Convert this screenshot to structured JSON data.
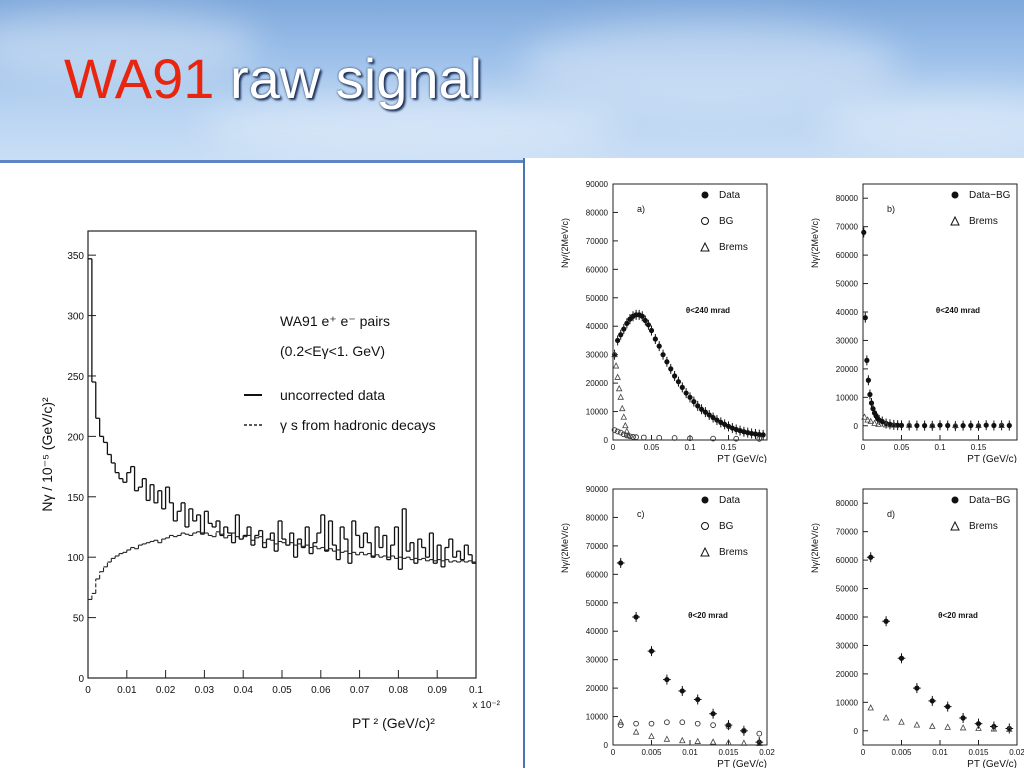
{
  "slide": {
    "title_red": "WA91",
    "title_white": " raw signal",
    "colors": {
      "title_red": "#e8250e",
      "title_white": "#ffffff",
      "header_sky": "#9cc0ea",
      "divider": "#5f86c4"
    }
  },
  "chart_data": [
    {
      "type": "line",
      "title": "",
      "legend_title": "WA91 e⁺ e⁻ pairs",
      "legend_subtitle": "(0.2<Eγ<1. GeV)",
      "ylabel": "Nγ / 10⁻⁵ (GeV/c)²",
      "xlabel": "PT ² (GeV/c)²",
      "x_scale_label": "x 10⁻²",
      "xlim": [
        0,
        0.1
      ],
      "ylim": [
        0,
        370
      ],
      "xticks": [
        0,
        0.01,
        0.02,
        0.03,
        0.04,
        0.05,
        0.06,
        0.07,
        0.08,
        0.09,
        0.1
      ],
      "xtick_labels": [
        "0",
        "0.01",
        "0.02",
        "0.03",
        "0.04",
        "0.05",
        "0.06",
        "0.07",
        "0.08",
        "0.09",
        "0.1"
      ],
      "yticks": [
        0,
        50,
        100,
        150,
        200,
        250,
        300,
        350
      ],
      "ytick_labels": [
        "0",
        "50",
        "100",
        "150",
        "200",
        "250",
        "300",
        "350"
      ],
      "series": [
        {
          "name": "uncorrected data",
          "style": "solid-histogram",
          "x": [
            0,
            0.001,
            0.002,
            0.003,
            0.004,
            0.005,
            0.006,
            0.007,
            0.008,
            0.009,
            0.01,
            0.011,
            0.012,
            0.013,
            0.014,
            0.015,
            0.016,
            0.017,
            0.018,
            0.019,
            0.02,
            0.021,
            0.022,
            0.023,
            0.024,
            0.025,
            0.026,
            0.027,
            0.028,
            0.029,
            0.03,
            0.031,
            0.032,
            0.033,
            0.034,
            0.035,
            0.036,
            0.037,
            0.038,
            0.039,
            0.04,
            0.041,
            0.042,
            0.043,
            0.044,
            0.045,
            0.046,
            0.047,
            0.048,
            0.049,
            0.05,
            0.051,
            0.052,
            0.053,
            0.054,
            0.055,
            0.056,
            0.057,
            0.058,
            0.059,
            0.06,
            0.061,
            0.062,
            0.063,
            0.064,
            0.065,
            0.066,
            0.067,
            0.068,
            0.069,
            0.07,
            0.071,
            0.072,
            0.073,
            0.074,
            0.075,
            0.076,
            0.077,
            0.078,
            0.079,
            0.08,
            0.081,
            0.082,
            0.083,
            0.084,
            0.085,
            0.086,
            0.087,
            0.088,
            0.089,
            0.09,
            0.091,
            0.092,
            0.093,
            0.094,
            0.095,
            0.096,
            0.097,
            0.098,
            0.099
          ],
          "values": [
            347,
            245,
            215,
            200,
            195,
            185,
            178,
            170,
            165,
            162,
            170,
            175,
            155,
            158,
            165,
            147,
            160,
            145,
            155,
            140,
            158,
            145,
            130,
            138,
            145,
            125,
            140,
            130,
            135,
            120,
            138,
            128,
            125,
            130,
            118,
            125,
            120,
            112,
            135,
            115,
            118,
            125,
            110,
            118,
            122,
            108,
            115,
            120,
            105,
            130,
            115,
            110,
            120,
            100,
            115,
            108,
            125,
            103,
            112,
            120,
            135,
            105,
            130,
            110,
            98,
            125,
            115,
            95,
            130,
            118,
            108,
            120,
            112,
            100,
            125,
            108,
            118,
            98,
            110,
            125,
            90,
            140,
            105,
            112,
            95,
            115,
            108,
            100,
            120,
            95,
            110,
            92,
            108,
            115,
            100,
            105,
            98,
            110,
            102,
            95
          ]
        },
        {
          "name": "γ s from hadronic decays",
          "style": "dashed-histogram",
          "x": [
            0,
            0.001,
            0.002,
            0.003,
            0.004,
            0.005,
            0.006,
            0.007,
            0.008,
            0.009,
            0.01,
            0.011,
            0.012,
            0.013,
            0.014,
            0.015,
            0.016,
            0.017,
            0.018,
            0.019,
            0.02,
            0.021,
            0.022,
            0.023,
            0.024,
            0.025,
            0.026,
            0.027,
            0.028,
            0.029,
            0.03,
            0.031,
            0.032,
            0.033,
            0.034,
            0.035,
            0.036,
            0.037,
            0.038,
            0.039,
            0.04,
            0.041,
            0.042,
            0.043,
            0.044,
            0.045,
            0.046,
            0.047,
            0.048,
            0.049,
            0.05,
            0.051,
            0.052,
            0.053,
            0.054,
            0.055,
            0.056,
            0.057,
            0.058,
            0.059,
            0.06,
            0.061,
            0.062,
            0.063,
            0.064,
            0.065,
            0.066,
            0.067,
            0.068,
            0.069,
            0.07,
            0.071,
            0.072,
            0.073,
            0.074,
            0.075,
            0.076,
            0.077,
            0.078,
            0.079,
            0.08,
            0.081,
            0.082,
            0.083,
            0.084,
            0.085,
            0.086,
            0.087,
            0.088,
            0.089,
            0.09,
            0.091,
            0.092,
            0.093,
            0.094,
            0.095,
            0.096,
            0.097,
            0.098,
            0.099
          ],
          "values": [
            65,
            70,
            82,
            88,
            92,
            96,
            99,
            101,
            103,
            104,
            106,
            108,
            107,
            110,
            111,
            112,
            113,
            114,
            112,
            115,
            116,
            118,
            117,
            118,
            120,
            119,
            118,
            120,
            121,
            119,
            120,
            118,
            117,
            121,
            119,
            116,
            118,
            120,
            117,
            115,
            117,
            118,
            114,
            116,
            117,
            112,
            115,
            114,
            111,
            113,
            112,
            110,
            112,
            110,
            111,
            109,
            110,
            108,
            109,
            107,
            108,
            106,
            107,
            105,
            106,
            104,
            105,
            103,
            104,
            102,
            104,
            102,
            103,
            101,
            102,
            100,
            101,
            100,
            101,
            99,
            100,
            99,
            100,
            98,
            99,
            98,
            99,
            97,
            98,
            97,
            98,
            97,
            98,
            96,
            97,
            96,
            97,
            96,
            97,
            96
          ]
        }
      ]
    },
    {
      "type": "scatter",
      "panel_label": "a)",
      "cut_label": "θ<240 mrad",
      "xlabel": "PT (GeV/c)",
      "ylabel": "Nγ/(2MeV/c)",
      "xlim": [
        0,
        0.2
      ],
      "ylim": [
        0,
        90000
      ],
      "xticks": [
        0,
        0.05,
        0.1,
        0.15
      ],
      "xtick_labels": [
        "0",
        "0.05",
        "0.1",
        "0.15"
      ],
      "yticks": [
        0,
        10000,
        20000,
        30000,
        40000,
        50000,
        60000,
        70000,
        80000,
        90000
      ],
      "ytick_labels": [
        "0",
        "10000",
        "20000",
        "30000",
        "40000",
        "50000",
        "60000",
        "70000",
        "80000",
        "90000"
      ],
      "legend": [
        "Data",
        "BG",
        "Brems"
      ],
      "series": [
        {
          "name": "Data",
          "marker": "dot",
          "x": [
            0.002,
            0.006,
            0.01,
            0.014,
            0.018,
            0.022,
            0.026,
            0.03,
            0.034,
            0.038,
            0.042,
            0.046,
            0.05,
            0.055,
            0.06,
            0.065,
            0.07,
            0.075,
            0.08,
            0.085,
            0.09,
            0.095,
            0.1,
            0.105,
            0.11,
            0.115,
            0.12,
            0.125,
            0.13,
            0.135,
            0.14,
            0.145,
            0.15,
            0.155,
            0.16,
            0.165,
            0.17,
            0.175,
            0.18,
            0.185,
            0.19,
            0.195
          ],
          "values": [
            30000,
            35000,
            37000,
            39000,
            41000,
            42500,
            43500,
            44000,
            44000,
            43500,
            42000,
            40500,
            38500,
            35500,
            33000,
            30000,
            27500,
            25000,
            22500,
            20500,
            18500,
            16500,
            15000,
            13500,
            12000,
            10800,
            9800,
            8800,
            7900,
            7000,
            6200,
            5500,
            4800,
            4200,
            3700,
            3300,
            2900,
            2600,
            2300,
            2100,
            1900,
            1800
          ]
        },
        {
          "name": "BG",
          "marker": "open-circle",
          "x": [
            0.002,
            0.006,
            0.01,
            0.014,
            0.018,
            0.022,
            0.026,
            0.03,
            0.04,
            0.06,
            0.08,
            0.1,
            0.13,
            0.16,
            0.19
          ],
          "values": [
            3500,
            3000,
            2600,
            2000,
            1600,
            1300,
            1100,
            1000,
            900,
            800,
            700,
            600,
            500,
            450,
            400
          ]
        },
        {
          "name": "Brems",
          "marker": "open-triangle",
          "x": [
            0.002,
            0.004,
            0.006,
            0.008,
            0.01,
            0.012,
            0.014,
            0.016,
            0.018,
            0.02
          ],
          "values": [
            30000,
            26000,
            22000,
            18000,
            15000,
            11000,
            8000,
            5000,
            3000,
            1500
          ]
        }
      ]
    },
    {
      "type": "scatter",
      "panel_label": "b)",
      "cut_label": "θ<240 mrad",
      "xlabel": "PT (GeV/c)",
      "ylabel": "Nγ/(2MeV/c)",
      "xlim": [
        0,
        0.2
      ],
      "ylim": [
        -5000,
        85000
      ],
      "xticks": [
        0,
        0.05,
        0.1,
        0.15
      ],
      "xtick_labels": [
        "0",
        "0.05",
        "0.1",
        "0.15"
      ],
      "yticks": [
        0,
        10000,
        20000,
        30000,
        40000,
        50000,
        60000,
        70000,
        80000
      ],
      "ytick_labels": [
        "0",
        "10000",
        "20000",
        "30000",
        "40000",
        "50000",
        "60000",
        "70000",
        "80000"
      ],
      "legend": [
        "Data−BG",
        "Brems"
      ],
      "series": [
        {
          "name": "Data−BG",
          "marker": "dot",
          "x": [
            0.001,
            0.003,
            0.005,
            0.007,
            0.009,
            0.011,
            0.013,
            0.015,
            0.017,
            0.019,
            0.021,
            0.025,
            0.03,
            0.035,
            0.04,
            0.045,
            0.05,
            0.06,
            0.07,
            0.08,
            0.09,
            0.1,
            0.11,
            0.12,
            0.13,
            0.14,
            0.15,
            0.16,
            0.17,
            0.18,
            0.19
          ],
          "values": [
            68000,
            38000,
            23000,
            16000,
            11000,
            8000,
            6000,
            4500,
            3500,
            2500,
            2000,
            1500,
            800,
            500,
            300,
            200,
            150,
            100,
            80,
            60,
            0,
            200,
            100,
            -100,
            50,
            100,
            0,
            200,
            100,
            150,
            100
          ]
        },
        {
          "name": "Brems",
          "marker": "open-triangle",
          "x": [
            0.002,
            0.006,
            0.01,
            0.015,
            0.02,
            0.03,
            0.04,
            0.06,
            0.09,
            0.12,
            0.15,
            0.18
          ],
          "values": [
            3000,
            2000,
            1500,
            800,
            500,
            300,
            200,
            150,
            100,
            80,
            60,
            50
          ]
        }
      ]
    },
    {
      "type": "scatter",
      "panel_label": "c)",
      "cut_label": "θ<20 mrad",
      "xlabel": "PT (GeV/c)",
      "ylabel": "Nγ/(2MeV/c)",
      "xlim": [
        0,
        0.02
      ],
      "ylim": [
        0,
        90000
      ],
      "xticks": [
        0,
        0.005,
        0.01,
        0.015,
        0.02
      ],
      "xtick_labels": [
        "0",
        "0.005",
        "0.01",
        "0.015",
        "0.02"
      ],
      "yticks": [
        0,
        10000,
        20000,
        30000,
        40000,
        50000,
        60000,
        70000,
        80000,
        90000
      ],
      "ytick_labels": [
        "0",
        "10000",
        "20000",
        "30000",
        "40000",
        "50000",
        "60000",
        "70000",
        "80000",
        "90000"
      ],
      "legend": [
        "Data",
        "BG",
        "Brems"
      ],
      "series": [
        {
          "name": "Data",
          "marker": "dot",
          "x": [
            0.001,
            0.003,
            0.005,
            0.007,
            0.009,
            0.011,
            0.013,
            0.015,
            0.017,
            0.019
          ],
          "values": [
            64000,
            45000,
            33000,
            23000,
            19000,
            16000,
            11000,
            7000,
            5000,
            1000
          ]
        },
        {
          "name": "BG",
          "marker": "open-circle",
          "x": [
            0.001,
            0.003,
            0.005,
            0.007,
            0.009,
            0.011,
            0.013,
            0.015,
            0.017,
            0.019
          ],
          "values": [
            7000,
            7500,
            7500,
            8000,
            8000,
            7500,
            7000,
            6500,
            5000,
            4000
          ]
        },
        {
          "name": "Brems",
          "marker": "open-triangle",
          "x": [
            0.001,
            0.003,
            0.005,
            0.007,
            0.009,
            0.011,
            0.013,
            0.015,
            0.017,
            0.019
          ],
          "values": [
            8000,
            4500,
            3000,
            2000,
            1500,
            1200,
            1000,
            800,
            600,
            500
          ]
        }
      ]
    },
    {
      "type": "scatter",
      "panel_label": "d)",
      "cut_label": "θ<20 mrad",
      "xlabel": "PT (GeV/c)",
      "ylabel": "Nγ/(2MeV/c)",
      "xlim": [
        0,
        0.02
      ],
      "ylim": [
        -5000,
        85000
      ],
      "xticks": [
        0,
        0.005,
        0.01,
        0.015,
        0.02
      ],
      "xtick_labels": [
        "0",
        "0.005",
        "0.01",
        "0.015",
        "0.02"
      ],
      "yticks": [
        0,
        10000,
        20000,
        30000,
        40000,
        50000,
        60000,
        70000,
        80000
      ],
      "ytick_labels": [
        "0",
        "10000",
        "20000",
        "30000",
        "40000",
        "50000",
        "60000",
        "70000",
        "80000"
      ],
      "legend": [
        "Data−BG",
        "Brems"
      ],
      "series": [
        {
          "name": "Data−BG",
          "marker": "dot",
          "x": [
            0.001,
            0.003,
            0.005,
            0.007,
            0.009,
            0.011,
            0.013,
            0.015,
            0.017,
            0.019
          ],
          "values": [
            61000,
            38500,
            25500,
            15000,
            10500,
            8500,
            4500,
            2500,
            1500,
            800
          ]
        },
        {
          "name": "Brems",
          "marker": "open-triangle",
          "x": [
            0.001,
            0.003,
            0.005,
            0.007,
            0.009,
            0.011,
            0.013,
            0.015,
            0.017,
            0.019
          ],
          "values": [
            8000,
            4500,
            3000,
            2000,
            1500,
            1200,
            1000,
            800,
            600,
            500
          ]
        }
      ]
    }
  ]
}
